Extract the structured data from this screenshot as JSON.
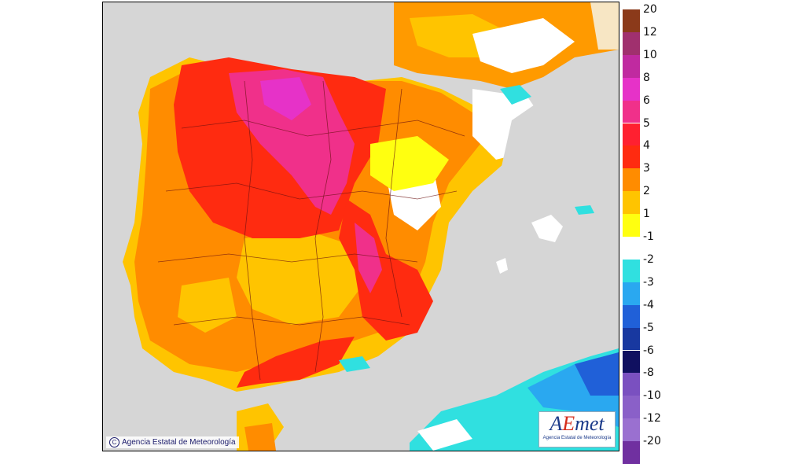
{
  "copyright": "Agencia Estatal de Meteorología",
  "logo": {
    "brand_a": "A",
    "brand_e": "E",
    "brand_rest": "met",
    "subtitle": "Agencia Estatal de Meteorología"
  },
  "legend": {
    "labels": [
      "20",
      "12",
      "10",
      "8",
      "6",
      "5",
      "4",
      "3",
      "2",
      "1",
      "-1",
      "-2",
      "-3",
      "-4",
      "-5",
      "-6",
      "-8",
      "-10",
      "-12",
      "-20"
    ],
    "colors": [
      "#8b3a1a",
      "#a0306e",
      "#c02aa0",
      "#e632c8",
      "#f0308a",
      "#ff2030",
      "#ff2b10",
      "#ff8c00",
      "#ffc400",
      "#ffff10",
      "#ffffff",
      "#30e0e0",
      "#2aa8f0",
      "#2060d8",
      "#1838a0",
      "#101060",
      "#7a50c0",
      "#8a60c8",
      "#9a70d0",
      "#7030a0"
    ]
  }
}
